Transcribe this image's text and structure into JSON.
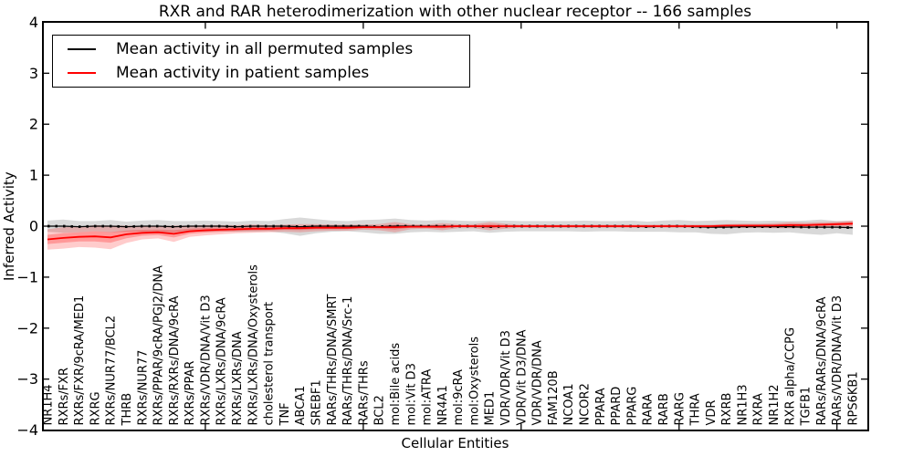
{
  "figure": {
    "title": "RXR and RAR heterodimerization with other nuclear receptor -- 166 samples"
  },
  "axes": {
    "xlabel": "Cellular Entities",
    "ylabel": "Inferred Activity"
  },
  "legend": {
    "entries": [
      {
        "label": "Mean activity in all permuted samples",
        "color": "#000000"
      },
      {
        "label": "Mean activity in patient samples",
        "color": "#ff0000"
      }
    ]
  },
  "chart_data": {
    "type": "line",
    "title": "RXR and RAR heterodimerization with other nuclear receptor -- 166 samples",
    "xlabel": "Cellular Entities",
    "ylabel": "Inferred Activity",
    "ylim": [
      -4,
      4
    ],
    "yticks": [
      -4,
      -3,
      -2,
      -1,
      0,
      1,
      2,
      3,
      4
    ],
    "x_major_tick_every": 10,
    "grid": false,
    "legend_position": "upper left",
    "categories": [
      "NR1H4",
      "RXRs/FXR",
      "RXRs/FXR/9cRA/MED1",
      "RXRG",
      "RXRs/NUR77/BCL2",
      "THRB",
      "RXRs/NUR77",
      "RXRs/PPAR/9cRA/PGJ2/DNA",
      "RXRs/RXRs/DNA/9cRA",
      "RXRs/PPAR",
      "RXRs/VDR/DNA/Vit D3",
      "RXRs/LXRs/DNA/9cRA",
      "RXRs/LXRs/DNA",
      "RXRs/LXRs/DNA/Oxysterols",
      "cholesterol transport",
      "TNF",
      "ABCA1",
      "SREBF1",
      "RARs/THRs/DNA/SMRT",
      "RARs/THRs/DNA/Src-1",
      "RARs/THRs",
      "BCL2",
      "mol:Bile acids",
      "mol:Vit D3",
      "mol:ATRA",
      "NR4A1",
      "mol:9cRA",
      "mol:Oxysterols",
      "MED1",
      "VDR/VDR/Vit D3",
      "VDR/Vit D3/DNA",
      "VDR/VDR/DNA",
      "FAM120B",
      "NCOA1",
      "NCOR2",
      "PPARA",
      "PPARD",
      "PPARG",
      "RARA",
      "RARB",
      "RARG",
      "THRA",
      "VDR",
      "RXRB",
      "NR1H3",
      "RXRA",
      "NR1H2",
      "RXR alpha/CCPG",
      "TGFB1",
      "RARs/RARs/DNA/9cRA",
      "RARs/VDR/DNA/Vit D3",
      "RPS6KB1"
    ],
    "series": [
      {
        "name": "Mean activity in all permuted samples",
        "color": "#000000",
        "band_color": "rgba(0,0,0,0.15)",
        "inner_band": false,
        "values": [
          0,
          0,
          -0.01,
          0,
          0,
          -0.01,
          0,
          0,
          -0.01,
          0,
          0,
          0,
          -0.01,
          0,
          0,
          0,
          -0.01,
          0,
          0,
          0,
          0,
          -0.01,
          0,
          0,
          0,
          0,
          0,
          0,
          -0.01,
          0,
          0,
          0,
          0,
          0,
          0,
          0,
          0,
          0,
          -0.01,
          0,
          0,
          -0.01,
          -0.02,
          -0.02,
          -0.01,
          -0.01,
          -0.01,
          -0.01,
          -0.02,
          -0.02,
          -0.02,
          -0.03
        ],
        "band_halfwidth": [
          0.11,
          0.13,
          0.11,
          0.1,
          0.12,
          0.1,
          0.11,
          0.12,
          0.11,
          0.1,
          0.11,
          0.1,
          0.1,
          0.11,
          0.1,
          0.14,
          0.18,
          0.14,
          0.11,
          0.1,
          0.12,
          0.14,
          0.15,
          0.12,
          0.11,
          0.12,
          0.11,
          0.1,
          0.12,
          0.11,
          0.1,
          0.1,
          0.1,
          0.1,
          0.11,
          0.1,
          0.1,
          0.11,
          0.1,
          0.11,
          0.12,
          0.11,
          0.13,
          0.14,
          0.12,
          0.11,
          0.12,
          0.11,
          0.13,
          0.15,
          0.12,
          0.14
        ]
      },
      {
        "name": "Mean activity in patient samples",
        "color": "#ff0000",
        "band_color": "rgba(255,0,0,0.2)",
        "inner_band": true,
        "values": [
          -0.26,
          -0.23,
          -0.21,
          -0.2,
          -0.22,
          -0.16,
          -0.13,
          -0.12,
          -0.15,
          -0.1,
          -0.08,
          -0.07,
          -0.06,
          -0.05,
          -0.05,
          -0.04,
          -0.04,
          -0.03,
          -0.03,
          -0.03,
          -0.02,
          -0.02,
          -0.02,
          -0.01,
          -0.01,
          -0.01,
          0,
          0,
          0,
          0,
          0,
          0,
          0,
          0,
          0,
          0,
          0,
          0,
          0,
          0,
          0,
          0,
          0,
          0.01,
          0.01,
          0.01,
          0.01,
          0.02,
          0.02,
          0.03,
          0.04,
          0.05
        ],
        "band_halfwidth": [
          0.2,
          0.21,
          0.2,
          0.22,
          0.23,
          0.17,
          0.13,
          0.12,
          0.16,
          0.11,
          0.1,
          0.09,
          0.08,
          0.08,
          0.07,
          0.07,
          0.08,
          0.07,
          0.06,
          0.06,
          0.05,
          0.06,
          0.1,
          0.05,
          0.04,
          0.07,
          0.04,
          0.04,
          0.08,
          0.05,
          0.03,
          0.03,
          0.03,
          0.03,
          0.03,
          0.03,
          0.03,
          0.03,
          0.03,
          0.03,
          0.03,
          0.03,
          0.03,
          0.03,
          0.04,
          0.04,
          0.05,
          0.06,
          0.05,
          0.05,
          0.05,
          0.06
        ]
      }
    ]
  }
}
